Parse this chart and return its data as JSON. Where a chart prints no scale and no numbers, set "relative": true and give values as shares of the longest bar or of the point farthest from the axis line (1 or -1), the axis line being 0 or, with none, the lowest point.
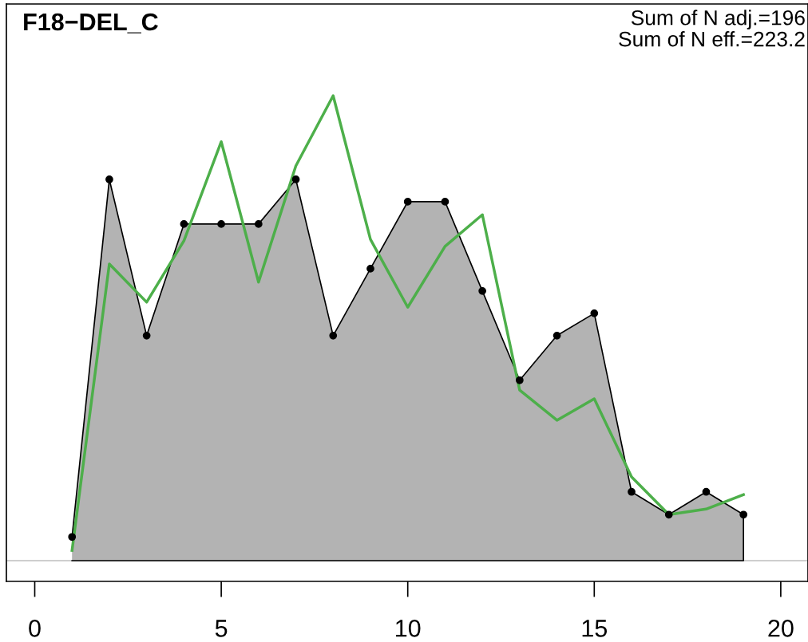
{
  "chart_data": {
    "type": "area",
    "title": "F18−DEL_C",
    "annotations": [
      "Sum of N adj.=196",
      "Sum of N eff.=223.2"
    ],
    "relative": true,
    "x": [
      1,
      2,
      3,
      4,
      5,
      6,
      7,
      8,
      9,
      10,
      11,
      12,
      13,
      14,
      15,
      16,
      17,
      18,
      19
    ],
    "xlim": [
      -0.76,
      20.73
    ],
    "xticks": [
      0,
      5,
      10,
      15,
      20
    ],
    "series": [
      {
        "color": "#b3b3b3",
        "marker": "circle",
        "values": [
          0.051,
          0.82,
          0.484,
          0.724,
          0.724,
          0.724,
          0.82,
          0.484,
          0.628,
          0.772,
          0.772,
          0.58,
          0.388,
          0.484,
          0.532,
          0.148,
          0.099,
          0.148,
          0.099
        ]
      },
      {
        "type": "line",
        "color": "#4daf4a",
        "values": [
          0.022,
          0.638,
          0.556,
          0.688,
          0.901,
          0.599,
          0.849,
          1,
          0.691,
          0.545,
          0.676,
          0.744,
          0.367,
          0.302,
          0.348,
          0.18,
          0.099,
          0.111,
          0.142
        ]
      }
    ],
    "ref_lines": [
      {
        "axis": "y",
        "value": 0,
        "color": "#bebebe"
      }
    ],
    "grid": false,
    "legend": false
  }
}
